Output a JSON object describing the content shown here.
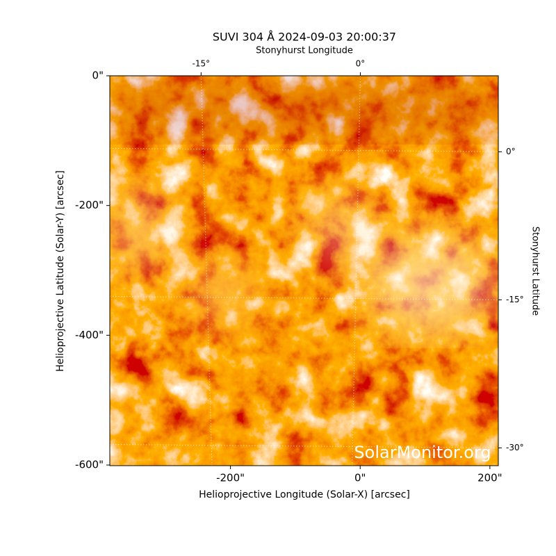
{
  "chart_data": {
    "type": "image",
    "title": "SUVI 304 Å 2024-09-03 20:00:37",
    "x_label": "Helioprojective Longitude (Solar-X) [arcsec]",
    "y_label": "Helioprojective Latitude (Solar-Y) [arcsec]",
    "x2_label": "Stonyhurst Longitude",
    "y2_label": "Stonyhurst Latitude",
    "watermark": "SolarMonitor.org",
    "xlim": [
      -386,
      213
    ],
    "xticks": [
      {
        "value": -200,
        "label": "-200\""
      },
      {
        "value": 0,
        "label": "0\""
      },
      {
        "value": 200,
        "label": "200\""
      }
    ],
    "ylim": [
      -601,
      0
    ],
    "yticks": [
      {
        "value": 0,
        "label": "0\""
      },
      {
        "value": -200,
        "label": "-200\""
      },
      {
        "value": -400,
        "label": "-400\""
      },
      {
        "value": -600,
        "label": "-600\""
      }
    ],
    "x2lim": [
      -23.6,
      13
    ],
    "x2ticks": [
      {
        "value": -15,
        "label": "-15°"
      },
      {
        "value": 0,
        "label": "0°"
      }
    ],
    "y2lim": [
      7.7,
      -31.8
    ],
    "y2ticks": [
      {
        "value": 0,
        "label": "0°"
      },
      {
        "value": -15,
        "label": "-15°"
      },
      {
        "value": -30,
        "label": "-30°"
      }
    ],
    "grid": true
  }
}
